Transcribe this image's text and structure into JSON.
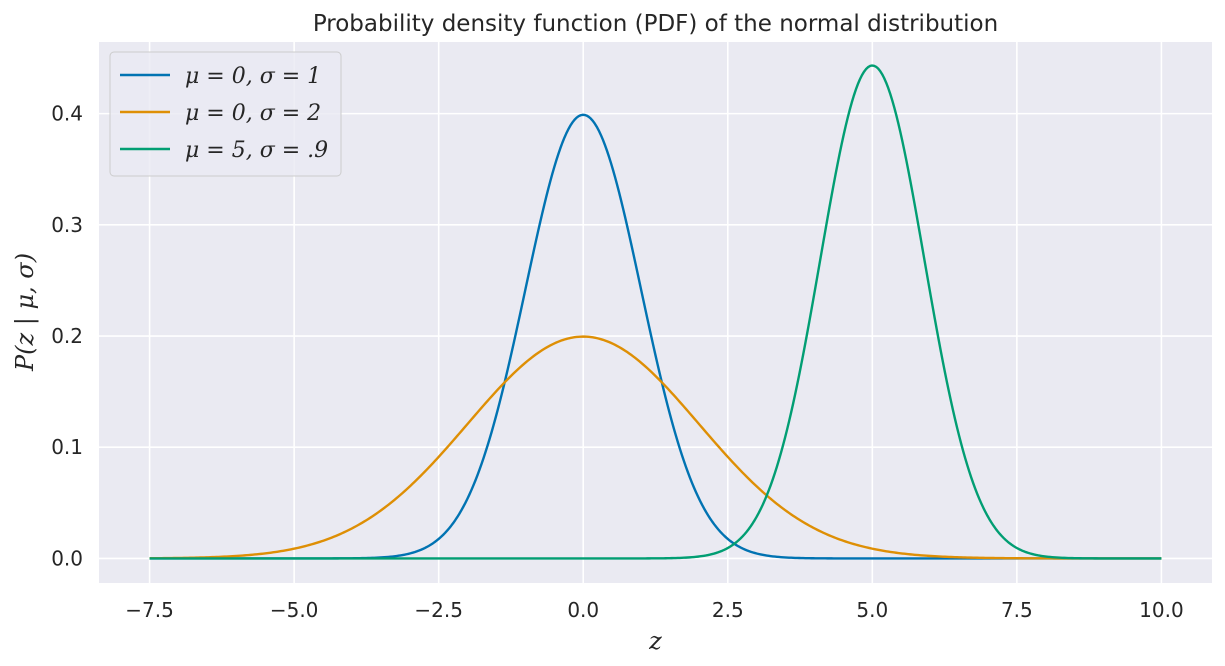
{
  "chart_data": {
    "type": "line",
    "title": "Probability density function (PDF) of the normal distribution",
    "xlabel": "z",
    "ylabel": "P(z | μ, σ)",
    "xlim": [
      -8.375,
      10.875
    ],
    "ylim": [
      -0.0221,
      0.4644
    ],
    "xticks": [
      -7.5,
      -5.0,
      -2.5,
      0.0,
      2.5,
      5.0,
      7.5,
      10.0
    ],
    "xtick_labels": [
      "−7.5",
      "−5.0",
      "−2.5",
      "0.0",
      "2.5",
      "5.0",
      "7.5",
      "10.0"
    ],
    "yticks": [
      0.0,
      0.1,
      0.2,
      0.3,
      0.4
    ],
    "ytick_labels": [
      "0.0",
      "0.1",
      "0.2",
      "0.3",
      "0.4"
    ],
    "x_range": [
      -7.5,
      10.0
    ],
    "grid": true,
    "legend_position": "top-left",
    "background": "#eaeaf2",
    "series": [
      {
        "name": "μ = 0, σ = 1",
        "mu": 0,
        "sigma": 1,
        "color": "#0173b2"
      },
      {
        "name": "μ = 0, σ = 2",
        "mu": 0,
        "sigma": 2,
        "color": "#de8f05"
      },
      {
        "name": "μ = 5, σ = .9",
        "mu": 5,
        "sigma": 0.9,
        "color": "#029e73"
      }
    ]
  }
}
